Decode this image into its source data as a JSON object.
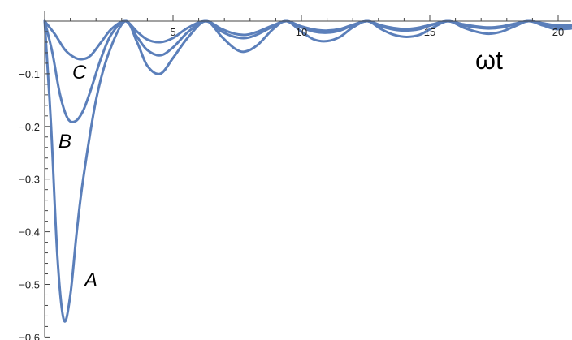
{
  "chart_data": {
    "type": "line",
    "title": "",
    "xlabel": "ωt",
    "ylabel": "",
    "xlim": [
      0,
      20.5
    ],
    "ylim": [
      -0.6,
      0.02
    ],
    "x_ticks": [
      5,
      10,
      15,
      20
    ],
    "x_tick_labels": [
      "5",
      "10",
      "15",
      "20"
    ],
    "y_ticks": [
      -0.1,
      -0.2,
      -0.3,
      -0.4,
      -0.5,
      -0.6
    ],
    "y_tick_labels": [
      "-0.1",
      "-0.2",
      "-0.3",
      "-0.4",
      "-0.5",
      "-0.6"
    ],
    "grid": false,
    "line_color": "#5b7fba",
    "series": [
      {
        "name": "A",
        "x": [
          0,
          0.25,
          0.5,
          0.75,
          1.0,
          1.25,
          1.5,
          2.0,
          2.5,
          3.14,
          3.6,
          4.0,
          4.5,
          5.0,
          5.6,
          6.28,
          6.9,
          7.4,
          7.8,
          8.3,
          8.9,
          9.42,
          10.0,
          10.5,
          11.0,
          11.5,
          12.0,
          12.57,
          13.1,
          13.6,
          14.1,
          14.6,
          15.1,
          15.71,
          16.3,
          16.8,
          17.3,
          17.8,
          18.3,
          18.85,
          19.4,
          19.9,
          20.5
        ],
        "y": [
          0,
          -0.2,
          -0.45,
          -0.568,
          -0.52,
          -0.4,
          -0.3,
          -0.15,
          -0.06,
          0,
          -0.04,
          -0.085,
          -0.1,
          -0.07,
          -0.03,
          0,
          -0.03,
          -0.052,
          -0.058,
          -0.045,
          -0.015,
          0,
          -0.02,
          -0.035,
          -0.038,
          -0.03,
          -0.012,
          0,
          -0.015,
          -0.026,
          -0.03,
          -0.026,
          -0.013,
          0,
          -0.012,
          -0.02,
          -0.024,
          -0.02,
          -0.01,
          0,
          -0.008,
          -0.015,
          -0.014
        ]
      },
      {
        "name": "B",
        "x": [
          0,
          0.3,
          0.6,
          0.9,
          1.2,
          1.5,
          1.8,
          2.2,
          2.6,
          3.14,
          3.6,
          4.0,
          4.5,
          5.0,
          5.6,
          6.28,
          6.9,
          7.4,
          7.85,
          8.3,
          8.9,
          9.42,
          10.0,
          10.5,
          11.0,
          11.5,
          12.0,
          12.57,
          13.1,
          13.6,
          14.1,
          14.6,
          15.1,
          15.71,
          16.3,
          16.8,
          17.3,
          17.8,
          18.3,
          18.85,
          19.4,
          19.9,
          20.5
        ],
        "y": [
          0,
          -0.06,
          -0.14,
          -0.185,
          -0.19,
          -0.17,
          -0.13,
          -0.07,
          -0.025,
          0,
          -0.03,
          -0.055,
          -0.065,
          -0.05,
          -0.02,
          0,
          -0.02,
          -0.03,
          -0.032,
          -0.025,
          -0.01,
          0,
          -0.012,
          -0.02,
          -0.022,
          -0.018,
          -0.008,
          0,
          -0.01,
          -0.016,
          -0.018,
          -0.015,
          -0.007,
          0,
          -0.008,
          -0.012,
          -0.014,
          -0.012,
          -0.006,
          0,
          -0.005,
          -0.01,
          -0.01
        ]
      },
      {
        "name": "C",
        "x": [
          0,
          0.4,
          0.8,
          1.2,
          1.5,
          1.8,
          2.2,
          2.6,
          3.14,
          3.6,
          4.0,
          4.5,
          5.0,
          5.6,
          6.28,
          6.9,
          7.4,
          7.85,
          8.3,
          8.9,
          9.42,
          10.0,
          10.5,
          11.0,
          11.5,
          12.0,
          12.57,
          13.1,
          13.6,
          14.1,
          14.6,
          15.1,
          15.71,
          16.3,
          16.8,
          17.3,
          17.8,
          18.3,
          18.85,
          19.4,
          19.9,
          20.5
        ],
        "y": [
          0,
          -0.025,
          -0.055,
          -0.07,
          -0.072,
          -0.065,
          -0.04,
          -0.015,
          0,
          -0.02,
          -0.035,
          -0.04,
          -0.032,
          -0.012,
          0,
          -0.015,
          -0.024,
          -0.026,
          -0.02,
          -0.008,
          0,
          -0.01,
          -0.016,
          -0.018,
          -0.015,
          -0.007,
          0,
          -0.008,
          -0.013,
          -0.015,
          -0.012,
          -0.006,
          0,
          -0.006,
          -0.01,
          -0.012,
          -0.01,
          -0.005,
          0,
          -0.004,
          -0.008,
          -0.008
        ]
      }
    ]
  }
}
